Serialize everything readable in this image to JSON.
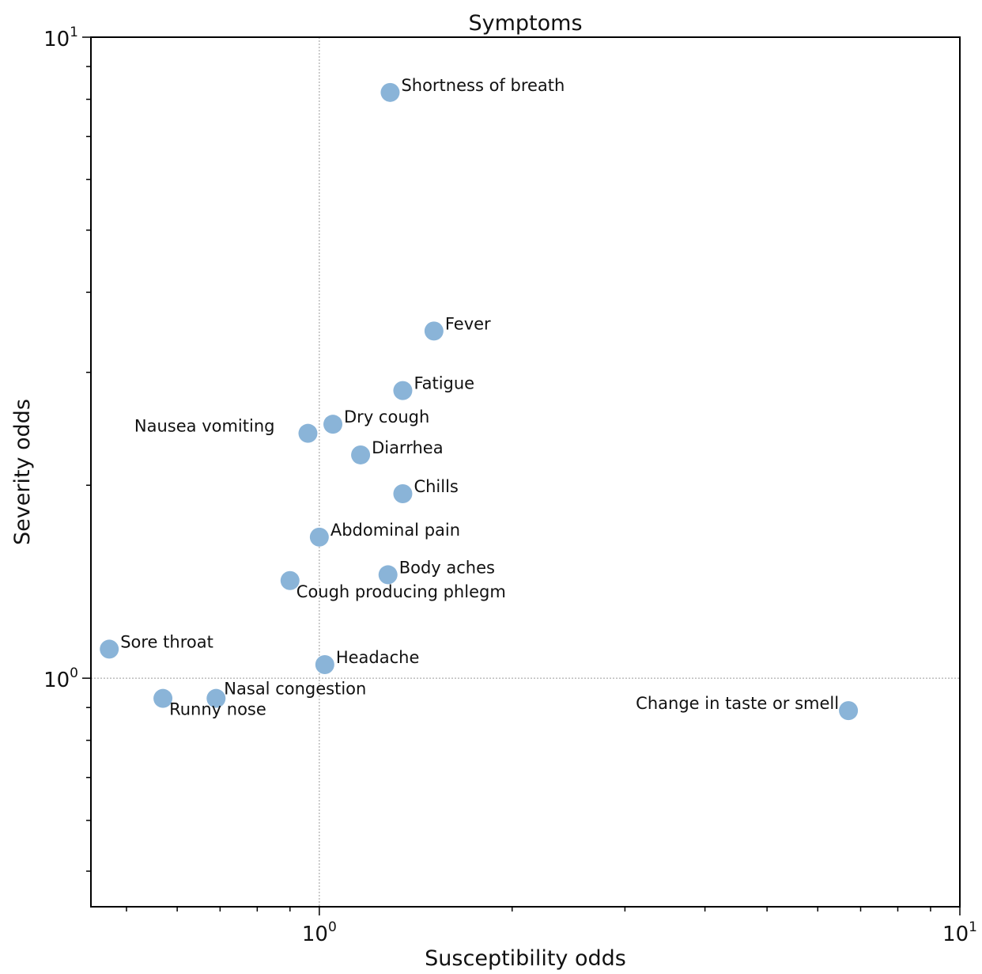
{
  "chart_data": {
    "type": "scatter",
    "title": "Symptoms",
    "xlabel": "Susceptibility odds",
    "ylabel": "Severity odds",
    "x_scale": "log",
    "y_scale": "log",
    "xlim": [
      0.44,
      10
    ],
    "ylim": [
      0.44,
      10
    ],
    "x_ticks": [
      {
        "value": 1,
        "label_base": "10",
        "label_exp": "0"
      },
      {
        "value": 10,
        "label_base": "10",
        "label_exp": "1"
      }
    ],
    "y_ticks": [
      {
        "value": 1,
        "label_base": "10",
        "label_exp": "0"
      },
      {
        "value": 10,
        "label_base": "10",
        "label_exp": "1"
      }
    ],
    "reference_lines": {
      "x": 1,
      "y": 1
    },
    "point_color": "#8ab4d8",
    "points": [
      {
        "label": "Shortness of breath",
        "x": 1.29,
        "y": 8.2,
        "label_pos": "right"
      },
      {
        "label": "Fever",
        "x": 1.51,
        "y": 3.48,
        "label_pos": "right"
      },
      {
        "label": "Fatigue",
        "x": 1.35,
        "y": 2.81,
        "label_pos": "right"
      },
      {
        "label": "Dry cough",
        "x": 1.05,
        "y": 2.49,
        "label_pos": "right"
      },
      {
        "label": "Nausea vomiting",
        "x": 0.96,
        "y": 2.41,
        "label_pos": "left"
      },
      {
        "label": "Diarrhea",
        "x": 1.16,
        "y": 2.23,
        "label_pos": "right"
      },
      {
        "label": "Chills",
        "x": 1.35,
        "y": 1.94,
        "label_pos": "right"
      },
      {
        "label": "Abdominal pain",
        "x": 1.0,
        "y": 1.66,
        "label_pos": "right"
      },
      {
        "label": "Body aches",
        "x": 1.28,
        "y": 1.45,
        "label_pos": "right"
      },
      {
        "label": "Cough producing phlegm",
        "x": 0.9,
        "y": 1.42,
        "label_pos": "below-right"
      },
      {
        "label": "Sore throat",
        "x": 0.47,
        "y": 1.11,
        "label_pos": "right"
      },
      {
        "label": "Headache",
        "x": 1.02,
        "y": 1.05,
        "label_pos": "right"
      },
      {
        "label": "Nasal congestion",
        "x": 0.69,
        "y": 0.93,
        "label_pos": "above-right"
      },
      {
        "label": "Runny nose",
        "x": 0.57,
        "y": 0.93,
        "label_pos": "below-right"
      },
      {
        "label": "Change in taste or smell",
        "x": 6.7,
        "y": 0.89,
        "label_pos": "left"
      }
    ]
  }
}
